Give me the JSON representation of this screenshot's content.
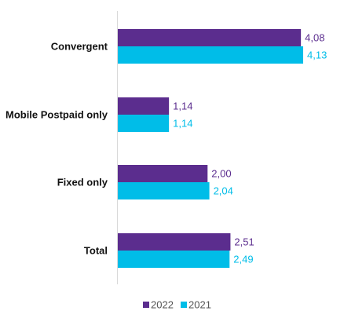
{
  "chart_data": {
    "type": "bar",
    "orientation": "horizontal",
    "categories": [
      "Convergent",
      "Mobile Postpaid only",
      "Fixed only",
      "Total"
    ],
    "series": [
      {
        "name": "2022",
        "color": "#5b2d8e",
        "values": [
          4.08,
          1.14,
          2.0,
          2.51
        ],
        "labels": [
          "4,08",
          "1,14",
          "2,00",
          "2,51"
        ]
      },
      {
        "name": "2021",
        "color": "#00bde8",
        "values": [
          4.13,
          1.14,
          2.04,
          2.49
        ],
        "labels": [
          "4,13",
          "1,14",
          "2,04",
          "2,49"
        ]
      }
    ],
    "xlim": [
      0,
      4.13
    ],
    "grid": false,
    "legend_position": "bottom"
  }
}
